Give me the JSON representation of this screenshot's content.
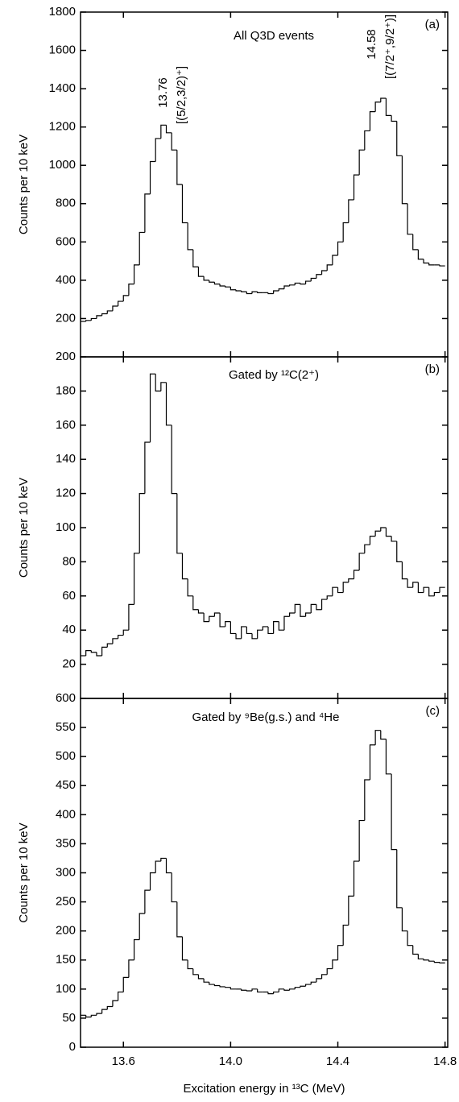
{
  "chart_data": [
    {
      "type": "histogram",
      "panel_label": "(a)",
      "annotations": [
        "All Q3D events",
        "13.76",
        "[(5/2,3/2)⁺]",
        "14.58",
        "[(7/2⁺,9/2⁺)]"
      ],
      "ylabel": "Counts per 10 keV",
      "color": "#000000",
      "bins": [
        13.44,
        13.46,
        13.48,
        13.5,
        13.52,
        13.54,
        13.56,
        13.58,
        13.6,
        13.62,
        13.64,
        13.66,
        13.68,
        13.7,
        13.72,
        13.74,
        13.76,
        13.78,
        13.8,
        13.82,
        13.84,
        13.86,
        13.88,
        13.9,
        13.92,
        13.94,
        13.96,
        13.98,
        14,
        14.02,
        14.04,
        14.06,
        14.08,
        14.1,
        14.12,
        14.14,
        14.16,
        14.18,
        14.2,
        14.22,
        14.24,
        14.26,
        14.28,
        14.3,
        14.32,
        14.34,
        14.36,
        14.38,
        14.4,
        14.42,
        14.44,
        14.46,
        14.48,
        14.5,
        14.52,
        14.54,
        14.56,
        14.58,
        14.6,
        14.62,
        14.64,
        14.66,
        14.68,
        14.7,
        14.72,
        14.74,
        14.76,
        14.78,
        14.8
      ],
      "values": [
        185,
        190,
        200,
        215,
        225,
        240,
        265,
        290,
        320,
        380,
        480,
        650,
        850,
        1020,
        1140,
        1210,
        1170,
        1080,
        900,
        700,
        560,
        470,
        420,
        400,
        390,
        380,
        370,
        365,
        350,
        345,
        340,
        330,
        340,
        335,
        335,
        330,
        345,
        355,
        370,
        375,
        385,
        380,
        395,
        410,
        430,
        450,
        480,
        530,
        600,
        700,
        820,
        950,
        1080,
        1180,
        1280,
        1330,
        1350,
        1260,
        1230,
        1050,
        800,
        640,
        560,
        510,
        490,
        480,
        480,
        475
      ],
      "xlim": [
        13.44,
        14.81
      ],
      "ylim": [
        0,
        1800
      ],
      "yticks": [
        200,
        400,
        600,
        800,
        1000,
        1200,
        1400,
        1600,
        1800
      ]
    },
    {
      "type": "histogram",
      "panel_label": "(b)",
      "annotations": [
        "Gated by ¹²C(2⁺)"
      ],
      "ylabel": "Counts per 10 keV",
      "color": "#000000",
      "bins": [
        13.44,
        13.46,
        13.48,
        13.5,
        13.52,
        13.54,
        13.56,
        13.58,
        13.6,
        13.62,
        13.64,
        13.66,
        13.68,
        13.7,
        13.72,
        13.74,
        13.76,
        13.78,
        13.8,
        13.82,
        13.84,
        13.86,
        13.88,
        13.9,
        13.92,
        13.94,
        13.96,
        13.98,
        14,
        14.02,
        14.04,
        14.06,
        14.08,
        14.1,
        14.12,
        14.14,
        14.16,
        14.18,
        14.2,
        14.22,
        14.24,
        14.26,
        14.28,
        14.3,
        14.32,
        14.34,
        14.36,
        14.38,
        14.4,
        14.42,
        14.44,
        14.46,
        14.48,
        14.5,
        14.52,
        14.54,
        14.56,
        14.58,
        14.6,
        14.62,
        14.64,
        14.66,
        14.68,
        14.7,
        14.72,
        14.74,
        14.76,
        14.78,
        14.8
      ],
      "values": [
        25,
        28,
        27,
        25,
        30,
        32,
        35,
        37,
        40,
        55,
        85,
        120,
        150,
        190,
        180,
        185,
        160,
        120,
        85,
        70,
        60,
        52,
        50,
        45,
        48,
        50,
        42,
        45,
        38,
        35,
        42,
        38,
        35,
        40,
        42,
        38,
        45,
        40,
        48,
        50,
        55,
        48,
        50,
        55,
        52,
        58,
        60,
        65,
        62,
        68,
        70,
        75,
        85,
        90,
        95,
        98,
        100,
        95,
        92,
        80,
        70,
        65,
        68,
        62,
        65,
        60,
        62,
        65
      ],
      "xlim": [
        13.44,
        14.81
      ],
      "ylim": [
        0,
        200
      ],
      "yticks": [
        20,
        40,
        60,
        80,
        100,
        120,
        140,
        160,
        180,
        200
      ]
    },
    {
      "type": "histogram",
      "panel_label": "(c)",
      "annotations": [
        "Gated by ⁹Be(g.s.) and ⁴He"
      ],
      "ylabel": "Counts per 10 keV",
      "xlabel": "Excitation energy in ¹³C (MeV)",
      "color": "#000000",
      "bins": [
        13.44,
        13.46,
        13.48,
        13.5,
        13.52,
        13.54,
        13.56,
        13.58,
        13.6,
        13.62,
        13.64,
        13.66,
        13.68,
        13.7,
        13.72,
        13.74,
        13.76,
        13.78,
        13.8,
        13.82,
        13.84,
        13.86,
        13.88,
        13.9,
        13.92,
        13.94,
        13.96,
        13.98,
        14,
        14.02,
        14.04,
        14.06,
        14.08,
        14.1,
        14.12,
        14.14,
        14.16,
        14.18,
        14.2,
        14.22,
        14.24,
        14.26,
        14.28,
        14.3,
        14.32,
        14.34,
        14.36,
        14.38,
        14.4,
        14.42,
        14.44,
        14.46,
        14.48,
        14.5,
        14.52,
        14.54,
        14.56,
        14.58,
        14.6,
        14.62,
        14.64,
        14.66,
        14.68,
        14.7,
        14.72,
        14.74,
        14.76,
        14.78,
        14.8
      ],
      "values": [
        55,
        52,
        55,
        58,
        65,
        70,
        80,
        95,
        120,
        150,
        185,
        230,
        270,
        300,
        320,
        325,
        300,
        250,
        190,
        150,
        135,
        125,
        118,
        112,
        108,
        106,
        104,
        103,
        100,
        100,
        98,
        97,
        100,
        95,
        95,
        92,
        95,
        100,
        98,
        100,
        103,
        105,
        108,
        112,
        118,
        125,
        135,
        150,
        175,
        210,
        260,
        320,
        390,
        460,
        520,
        545,
        530,
        470,
        340,
        240,
        200,
        175,
        160,
        152,
        150,
        148,
        146,
        145
      ],
      "xlim": [
        13.44,
        14.81
      ],
      "ylim": [
        0,
        600
      ],
      "yticks": [
        0,
        50,
        100,
        150,
        200,
        250,
        300,
        350,
        400,
        450,
        500,
        550,
        600
      ],
      "xticks": [
        13.6,
        {
          "value": 14,
          "label": "14.0"
        },
        14.4,
        14.8
      ]
    }
  ]
}
